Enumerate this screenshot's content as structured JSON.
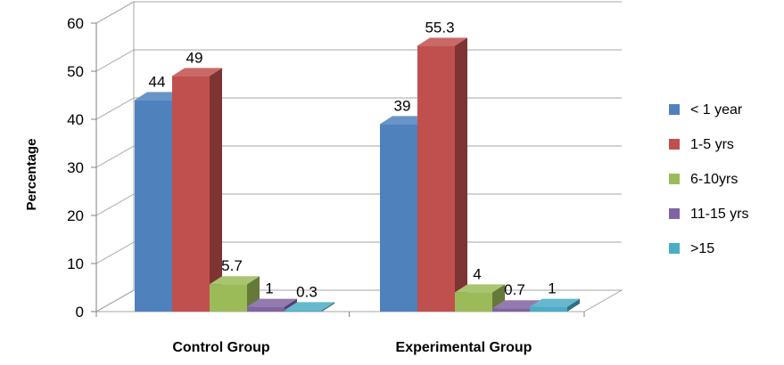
{
  "chart_data": {
    "type": "bar",
    "title": "",
    "xlabel": "",
    "ylabel": "Percentage",
    "ylim": [
      0,
      60
    ],
    "yticks": [
      0,
      10,
      20,
      30,
      40,
      50,
      60
    ],
    "grid": true,
    "legend_position": "right",
    "categories": [
      "Control Group",
      "Experimental Group"
    ],
    "series": [
      {
        "name": "< 1 year",
        "values": [
          44,
          39
        ],
        "labels": [
          "44",
          "39"
        ],
        "color": "#4F81BD"
      },
      {
        "name": "1-5 yrs",
        "values": [
          49,
          55.3
        ],
        "labels": [
          "49",
          "55.3"
        ],
        "color": "#C0504D"
      },
      {
        "name": "6-10yrs",
        "values": [
          5.7,
          4
        ],
        "labels": [
          "5.7",
          "4"
        ],
        "color": "#9BBB59"
      },
      {
        "name": "11-15 yrs",
        "values": [
          1,
          0.7
        ],
        "labels": [
          "1",
          "0.7"
        ],
        "color": "#8064A2"
      },
      {
        "name": ">15",
        "values": [
          0.3,
          1
        ],
        "labels": [
          "0.3",
          "1"
        ],
        "color": "#4BACC6"
      }
    ]
  }
}
